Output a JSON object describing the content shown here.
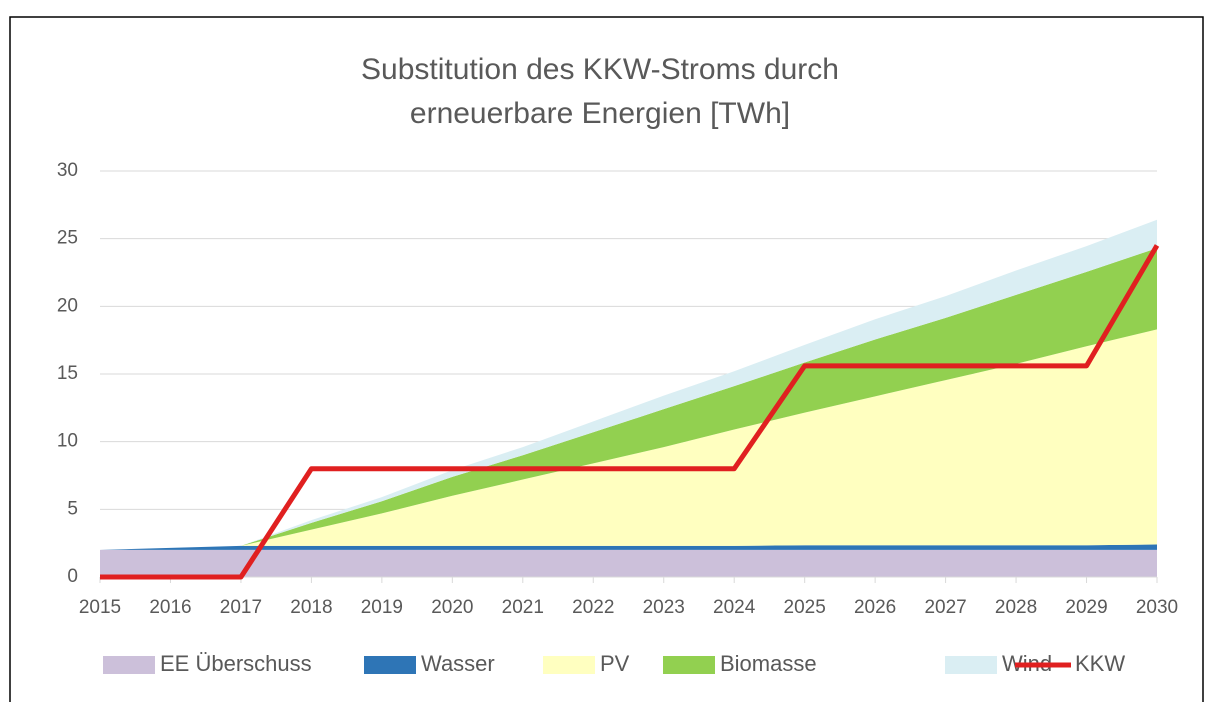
{
  "chart_data": {
    "type": "area",
    "title": [
      "Substitution des KKW-Stroms durch",
      "erneuerbare Energien [TWh]"
    ],
    "categories": [
      "2015",
      "2016",
      "2017",
      "2018",
      "2019",
      "2020",
      "2021",
      "2022",
      "2023",
      "2024",
      "2025",
      "2026",
      "2027",
      "2028",
      "2029",
      "2030"
    ],
    "series": [
      {
        "name": "EE Überschuss",
        "color": "#ccc0da",
        "values": [
          2,
          2,
          2,
          2,
          2,
          2,
          2,
          2,
          2,
          2,
          2,
          2,
          2,
          2,
          2,
          2
        ]
      },
      {
        "name": "Wasser",
        "color": "#2e75b6",
        "values": [
          0,
          0.15,
          0.3,
          0.3,
          0.3,
          0.3,
          0.3,
          0.3,
          0.3,
          0.3,
          0.35,
          0.35,
          0.35,
          0.35,
          0.35,
          0.4
        ]
      },
      {
        "name": "PV",
        "color": "#ffffc0",
        "values": [
          0,
          0,
          0,
          1.2,
          2.4,
          3.7,
          4.9,
          6.1,
          7.3,
          8.6,
          9.8,
          11.0,
          12.2,
          13.4,
          14.7,
          15.9
        ]
      },
      {
        "name": "Biomasse",
        "color": "#92d050",
        "values": [
          0,
          0,
          0,
          0.5,
          0.9,
          1.4,
          1.8,
          2.3,
          2.8,
          3.2,
          3.7,
          4.2,
          4.6,
          5.1,
          5.5,
          6.0
        ]
      },
      {
        "name": "Wind",
        "color": "#daeef3",
        "values": [
          0,
          0,
          0,
          0.2,
          0.3,
          0.5,
          0.6,
          0.8,
          1.0,
          1.1,
          1.3,
          1.5,
          1.6,
          1.8,
          1.9,
          2.1
        ]
      },
      {
        "name": "KKW",
        "color": "#e02020",
        "type": "line",
        "values": [
          0,
          0,
          0,
          8,
          8,
          8,
          8,
          8,
          8,
          8,
          15.6,
          15.6,
          15.6,
          15.6,
          15.6,
          24.5
        ]
      }
    ],
    "ylim": [
      0,
      30
    ],
    "yticks": [
      0,
      5,
      10,
      15,
      20,
      25,
      30
    ],
    "grid": true,
    "legend": "bottom"
  }
}
